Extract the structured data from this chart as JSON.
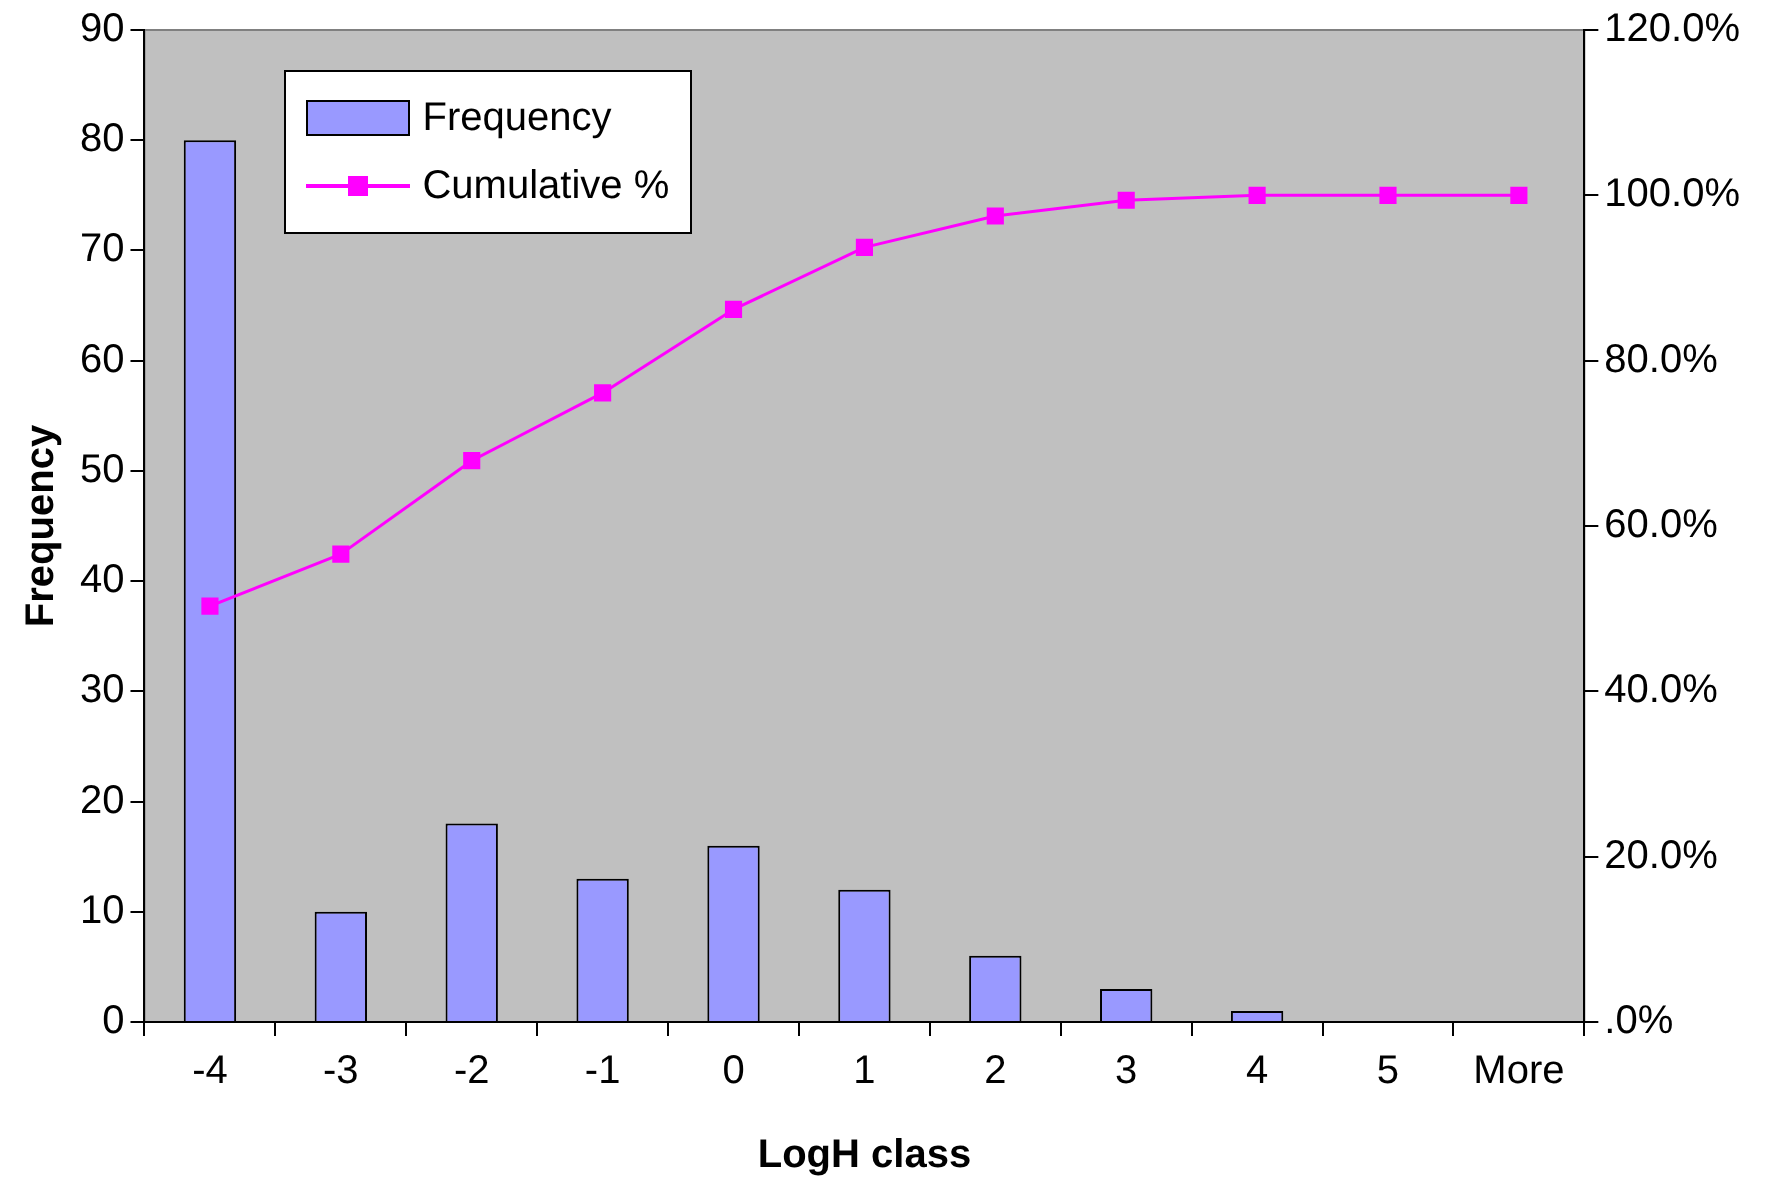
{
  "chart_data": {
    "type": "bar",
    "xlabel": "LogH class",
    "ylabel": "Frequency",
    "categories": [
      "-4",
      "-3",
      "-2",
      "-1",
      "0",
      "1",
      "2",
      "3",
      "4",
      "5",
      "More"
    ],
    "series": [
      {
        "name": "Frequency",
        "color": "#9999ff",
        "values": [
          80,
          10,
          18,
          13,
          16,
          12,
          6,
          3,
          1,
          0,
          0
        ]
      },
      {
        "name": "Cumulative %",
        "type": "line",
        "axis": "y2",
        "color": "#ff00ff",
        "marker": "square",
        "values": [
          50.3,
          56.6,
          67.9,
          76.1,
          86.2,
          93.7,
          97.5,
          99.4,
          100,
          100,
          100
        ]
      }
    ],
    "ylim": [
      0,
      90
    ],
    "yticks": [
      0,
      10,
      20,
      30,
      40,
      50,
      60,
      70,
      80,
      90
    ],
    "y2lim": [
      0,
      120
    ],
    "y2ticks": [
      {
        "value": 0,
        "label": ".0%"
      },
      {
        "value": 20,
        "label": "20.0%"
      },
      {
        "value": 40,
        "label": "40.0%"
      },
      {
        "value": 60,
        "label": "60.0%"
      },
      {
        "value": 80,
        "label": "80.0%"
      },
      {
        "value": 100,
        "label": "100.0%"
      },
      {
        "value": 120,
        "label": "120.0%"
      }
    ],
    "grid": false,
    "legend": "top left"
  }
}
